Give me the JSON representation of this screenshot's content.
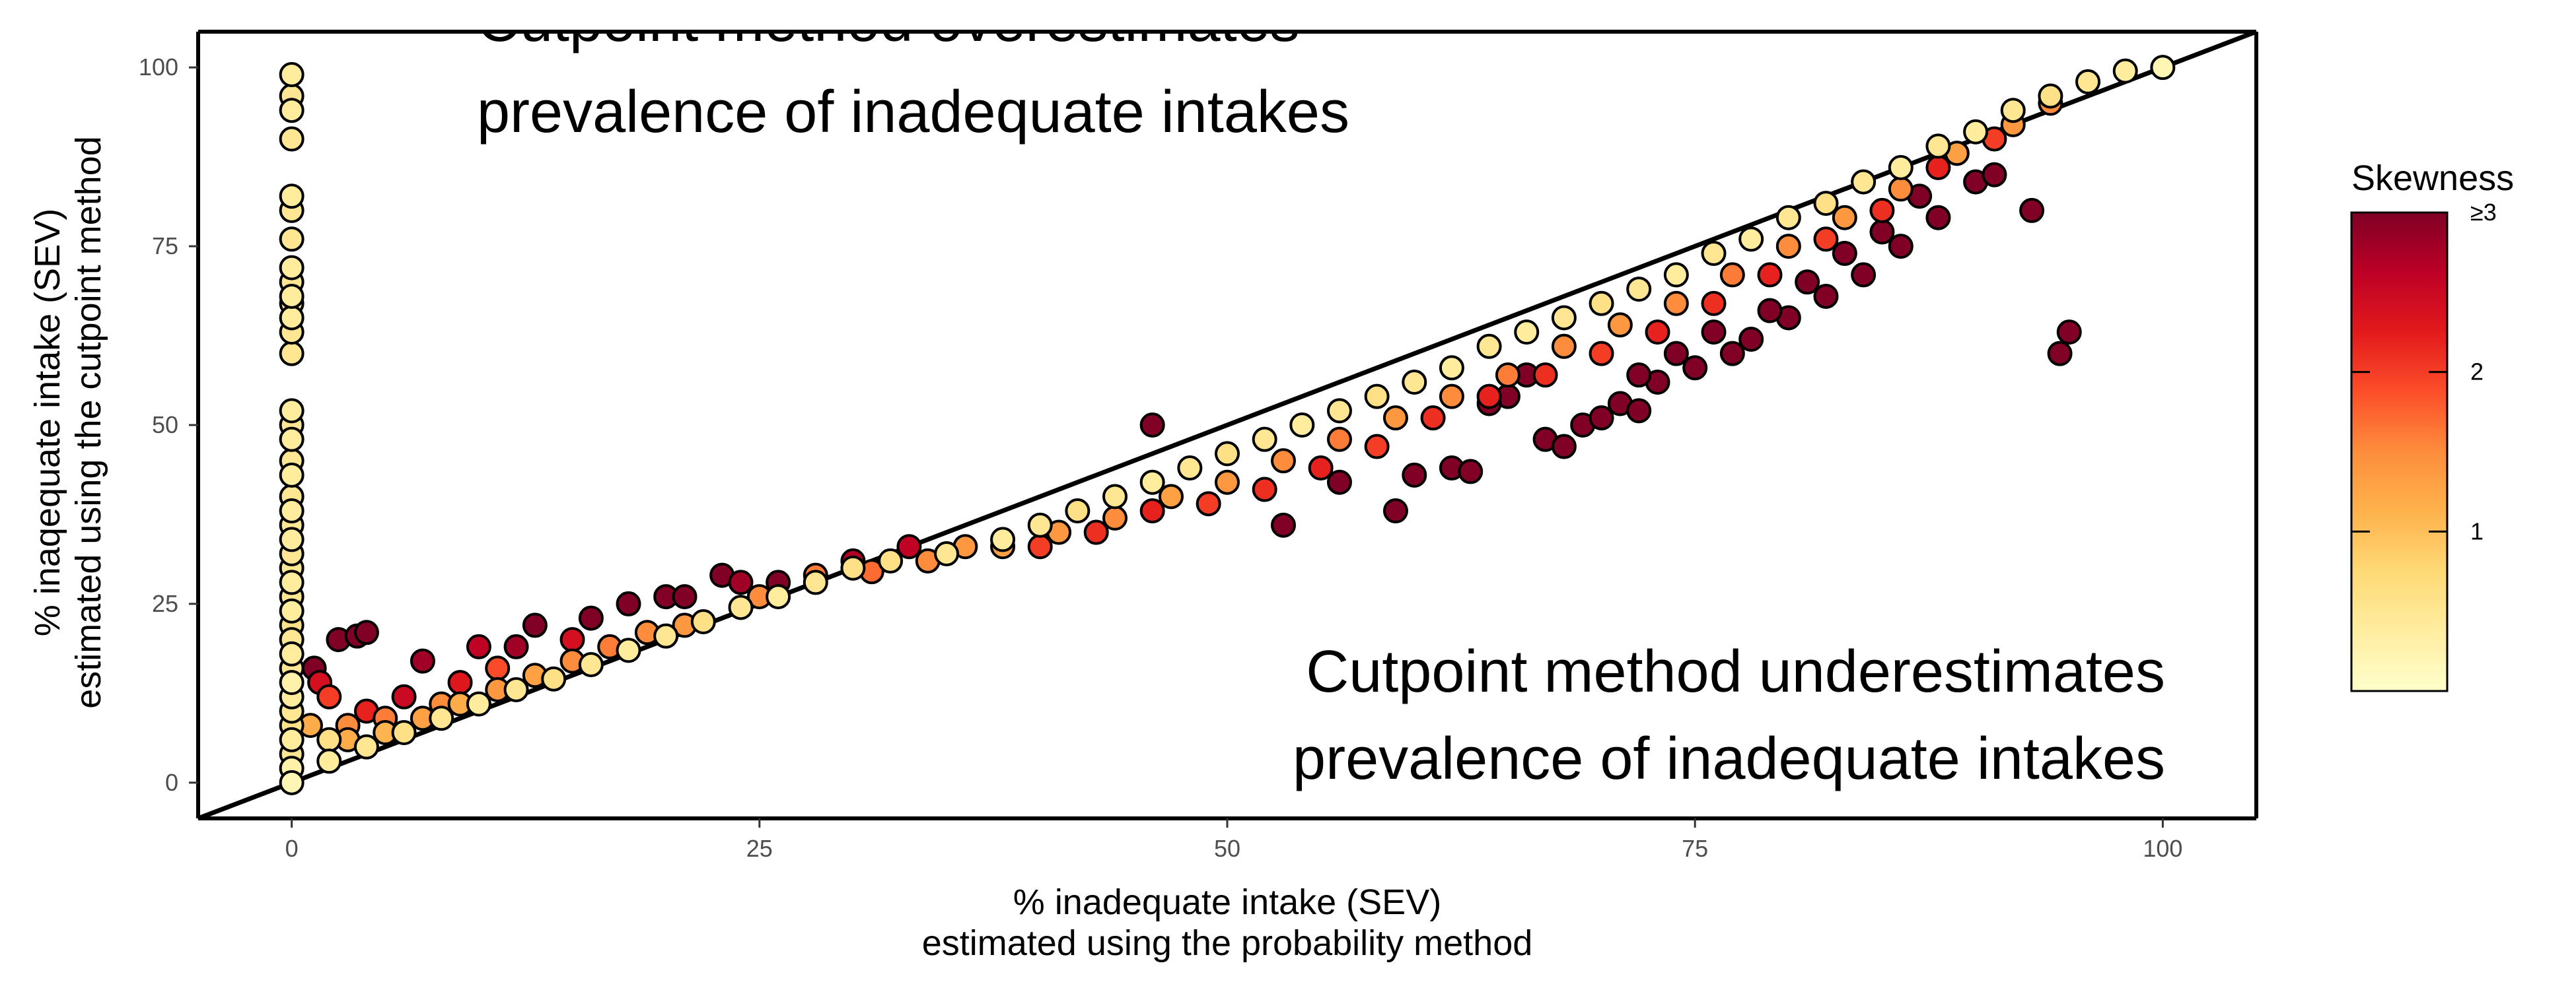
{
  "chart_data": {
    "type": "scatter",
    "xlabel_line1": "% inadequate intake (SEV)",
    "xlabel_line2": "estimated using the probability method",
    "ylabel_line1": "% inaqequate intake (SEV)",
    "ylabel_line2": "estimated using the cutpoint method",
    "xlim": [
      -5,
      105
    ],
    "ylim": [
      -5,
      105
    ],
    "x_ticks": [
      0,
      25,
      50,
      75,
      100
    ],
    "y_ticks": [
      0,
      25,
      50,
      75,
      100
    ],
    "x_tick_labels": [
      "0",
      "25",
      "50",
      "75",
      "100"
    ],
    "y_tick_labels": [
      "0",
      "25",
      "50",
      "75",
      "100"
    ],
    "grid": false,
    "reference_line": {
      "slope": 1,
      "intercept": 0
    },
    "annotations": {
      "over_line1": "Cutpoint method overestimates",
      "over_line2": "prevalence of inadequate intakes",
      "under_line1": "Cutpoint method underestimates",
      "under_line2": "prevalence of inadequate intakes"
    },
    "color_scale": {
      "title": "Skewness",
      "min": 0,
      "max": 3,
      "tick_values": [
        1,
        2,
        3
      ],
      "tick_labels": [
        "1",
        "2",
        "≥3"
      ],
      "colors": [
        "#ffffcc",
        "#ffeda0",
        "#fed976",
        "#feb24c",
        "#fd8d3c",
        "#fc4e2a",
        "#e31a1c",
        "#bd0026",
        "#800026"
      ],
      "legend_position": "right"
    },
    "points": [
      {
        "x": 0,
        "y": 0,
        "s": 0.2
      },
      {
        "x": 0,
        "y": 2,
        "s": 0.3
      },
      {
        "x": 0,
        "y": 4,
        "s": 0.5
      },
      {
        "x": 0,
        "y": 6,
        "s": 0.4
      },
      {
        "x": 0,
        "y": 8,
        "s": 0.6
      },
      {
        "x": 0,
        "y": 10,
        "s": 0.5
      },
      {
        "x": 0,
        "y": 12,
        "s": 0.4
      },
      {
        "x": 0,
        "y": 14,
        "s": 0.3
      },
      {
        "x": 0,
        "y": 16,
        "s": 0.5
      },
      {
        "x": 0,
        "y": 18,
        "s": 0.4
      },
      {
        "x": 0,
        "y": 20,
        "s": 0.5
      },
      {
        "x": 0,
        "y": 22,
        "s": 0.6
      },
      {
        "x": 0,
        "y": 24,
        "s": 0.4
      },
      {
        "x": 0,
        "y": 26,
        "s": 0.5
      },
      {
        "x": 0,
        "y": 28,
        "s": 0.4
      },
      {
        "x": 0,
        "y": 30,
        "s": 0.5
      },
      {
        "x": 0,
        "y": 32,
        "s": 0.5
      },
      {
        "x": 0,
        "y": 34,
        "s": 0.4
      },
      {
        "x": 0,
        "y": 36,
        "s": 0.5
      },
      {
        "x": 0,
        "y": 38,
        "s": 0.4
      },
      {
        "x": 0,
        "y": 40,
        "s": 0.5
      },
      {
        "x": 0,
        "y": 43,
        "s": 0.4
      },
      {
        "x": 0,
        "y": 45,
        "s": 0.5
      },
      {
        "x": 0,
        "y": 48,
        "s": 0.4
      },
      {
        "x": 0,
        "y": 50,
        "s": 0.5
      },
      {
        "x": 0,
        "y": 52,
        "s": 0.4
      },
      {
        "x": 0,
        "y": 60,
        "s": 0.5
      },
      {
        "x": 0,
        "y": 63,
        "s": 0.5
      },
      {
        "x": 0,
        "y": 65,
        "s": 0.4
      },
      {
        "x": 0,
        "y": 67,
        "s": 0.5
      },
      {
        "x": 0,
        "y": 68,
        "s": 0.4
      },
      {
        "x": 0,
        "y": 70,
        "s": 0.5
      },
      {
        "x": 0,
        "y": 72,
        "s": 0.4
      },
      {
        "x": 0,
        "y": 76,
        "s": 0.5
      },
      {
        "x": 0,
        "y": 80,
        "s": 0.5
      },
      {
        "x": 0,
        "y": 82,
        "s": 0.4
      },
      {
        "x": 0,
        "y": 90,
        "s": 0.5
      },
      {
        "x": 0,
        "y": 94,
        "s": 0.4
      },
      {
        "x": 0,
        "y": 96,
        "s": 0.5
      },
      {
        "x": 0,
        "y": 99,
        "s": 0.4
      },
      {
        "x": 2.5,
        "y": 20,
        "s": 3
      },
      {
        "x": 3.5,
        "y": 20.5,
        "s": 3
      },
      {
        "x": 4,
        "y": 21,
        "s": 3
      },
      {
        "x": 1.2,
        "y": 16,
        "s": 3
      },
      {
        "x": 1.5,
        "y": 14,
        "s": 2.4
      },
      {
        "x": 2,
        "y": 12,
        "s": 2
      },
      {
        "x": 1,
        "y": 8,
        "s": 1.2
      },
      {
        "x": 2,
        "y": 6,
        "s": 0.6
      },
      {
        "x": 3,
        "y": 8,
        "s": 1.5
      },
      {
        "x": 4,
        "y": 10,
        "s": 2.2
      },
      {
        "x": 5,
        "y": 9,
        "s": 1.6
      },
      {
        "x": 6,
        "y": 12,
        "s": 2.5
      },
      {
        "x": 7,
        "y": 17,
        "s": 2.8
      },
      {
        "x": 8,
        "y": 11,
        "s": 1.5
      },
      {
        "x": 9,
        "y": 14,
        "s": 2.3
      },
      {
        "x": 10,
        "y": 19,
        "s": 2.6
      },
      {
        "x": 11,
        "y": 16,
        "s": 1.9
      },
      {
        "x": 12,
        "y": 19,
        "s": 2.8
      },
      {
        "x": 13,
        "y": 22,
        "s": 3
      },
      {
        "x": 15,
        "y": 20,
        "s": 2.4
      },
      {
        "x": 16,
        "y": 23,
        "s": 3
      },
      {
        "x": 18,
        "y": 25,
        "s": 3
      },
      {
        "x": 20,
        "y": 26,
        "s": 3
      },
      {
        "x": 21,
        "y": 26,
        "s": 3
      },
      {
        "x": 23,
        "y": 29,
        "s": 3
      },
      {
        "x": 24,
        "y": 28,
        "s": 2.8
      },
      {
        "x": 26,
        "y": 28,
        "s": 3
      },
      {
        "x": 30,
        "y": 31,
        "s": 2.7
      },
      {
        "x": 33,
        "y": 33,
        "s": 2.6
      },
      {
        "x": 2,
        "y": 3,
        "s": 0.4
      },
      {
        "x": 4,
        "y": 5,
        "s": 0.5
      },
      {
        "x": 6,
        "y": 7,
        "s": 0.6
      },
      {
        "x": 8,
        "y": 9,
        "s": 0.5
      },
      {
        "x": 10,
        "y": 11,
        "s": 0.4
      },
      {
        "x": 12,
        "y": 13,
        "s": 0.5
      },
      {
        "x": 14,
        "y": 14.5,
        "s": 0.6
      },
      {
        "x": 16,
        "y": 16.5,
        "s": 0.5
      },
      {
        "x": 18,
        "y": 18.5,
        "s": 0.4
      },
      {
        "x": 20,
        "y": 20.5,
        "s": 0.5
      },
      {
        "x": 22,
        "y": 22.5,
        "s": 0.6
      },
      {
        "x": 24,
        "y": 24.5,
        "s": 0.5
      },
      {
        "x": 26,
        "y": 26,
        "s": 0.4
      },
      {
        "x": 28,
        "y": 28,
        "s": 0.5
      },
      {
        "x": 30,
        "y": 30,
        "s": 0.6
      },
      {
        "x": 3,
        "y": 6,
        "s": 1.2
      },
      {
        "x": 5,
        "y": 7,
        "s": 1.1
      },
      {
        "x": 7,
        "y": 9,
        "s": 1.3
      },
      {
        "x": 9,
        "y": 11,
        "s": 1.2
      },
      {
        "x": 11,
        "y": 13,
        "s": 1.4
      },
      {
        "x": 13,
        "y": 15,
        "s": 1.3
      },
      {
        "x": 15,
        "y": 17,
        "s": 1.5
      },
      {
        "x": 17,
        "y": 19,
        "s": 1.6
      },
      {
        "x": 19,
        "y": 21,
        "s": 1.5
      },
      {
        "x": 21,
        "y": 22,
        "s": 1.4
      },
      {
        "x": 25,
        "y": 26,
        "s": 1.5
      },
      {
        "x": 28,
        "y": 29,
        "s": 1.6
      },
      {
        "x": 31,
        "y": 29.5,
        "s": 1.7
      },
      {
        "x": 34,
        "y": 31,
        "s": 1.5
      },
      {
        "x": 36,
        "y": 33,
        "s": 1.4
      },
      {
        "x": 32,
        "y": 31,
        "s": 0.6
      },
      {
        "x": 35,
        "y": 32,
        "s": 0.5
      },
      {
        "x": 38,
        "y": 34,
        "s": 0.4
      },
      {
        "x": 40,
        "y": 36,
        "s": 0.5
      },
      {
        "x": 42,
        "y": 38,
        "s": 0.6
      },
      {
        "x": 44,
        "y": 40,
        "s": 0.5
      },
      {
        "x": 46,
        "y": 42,
        "s": 0.4
      },
      {
        "x": 48,
        "y": 44,
        "s": 0.5
      },
      {
        "x": 50,
        "y": 46,
        "s": 0.6
      },
      {
        "x": 52,
        "y": 48,
        "s": 0.5
      },
      {
        "x": 54,
        "y": 50,
        "s": 0.4
      },
      {
        "x": 56,
        "y": 52,
        "s": 0.5
      },
      {
        "x": 58,
        "y": 54,
        "s": 0.6
      },
      {
        "x": 60,
        "y": 56,
        "s": 0.5
      },
      {
        "x": 62,
        "y": 58,
        "s": 0.4
      },
      {
        "x": 64,
        "y": 61,
        "s": 0.5
      },
      {
        "x": 66,
        "y": 63,
        "s": 0.4
      },
      {
        "x": 68,
        "y": 65,
        "s": 0.5
      },
      {
        "x": 70,
        "y": 67,
        "s": 0.6
      },
      {
        "x": 72,
        "y": 69,
        "s": 0.5
      },
      {
        "x": 74,
        "y": 71,
        "s": 0.4
      },
      {
        "x": 76,
        "y": 74,
        "s": 0.5
      },
      {
        "x": 78,
        "y": 76,
        "s": 0.4
      },
      {
        "x": 80,
        "y": 79,
        "s": 0.5
      },
      {
        "x": 82,
        "y": 81,
        "s": 0.6
      },
      {
        "x": 84,
        "y": 84,
        "s": 0.5
      },
      {
        "x": 86,
        "y": 86,
        "s": 0.4
      },
      {
        "x": 88,
        "y": 89,
        "s": 0.5
      },
      {
        "x": 90,
        "y": 91,
        "s": 0.4
      },
      {
        "x": 92,
        "y": 94,
        "s": 0.5
      },
      {
        "x": 94,
        "y": 96,
        "s": 0.6
      },
      {
        "x": 96,
        "y": 98,
        "s": 0.5
      },
      {
        "x": 98,
        "y": 99.5,
        "s": 0.4
      },
      {
        "x": 100,
        "y": 100,
        "s": 0.2
      },
      {
        "x": 38,
        "y": 33,
        "s": 1.3
      },
      {
        "x": 41,
        "y": 35,
        "s": 1.4
      },
      {
        "x": 44,
        "y": 37,
        "s": 1.5
      },
      {
        "x": 47,
        "y": 40,
        "s": 1.3
      },
      {
        "x": 50,
        "y": 42,
        "s": 1.4
      },
      {
        "x": 53,
        "y": 45,
        "s": 1.5
      },
      {
        "x": 56,
        "y": 48,
        "s": 1.6
      },
      {
        "x": 59,
        "y": 51,
        "s": 1.4
      },
      {
        "x": 62,
        "y": 54,
        "s": 1.5
      },
      {
        "x": 65,
        "y": 57,
        "s": 1.6
      },
      {
        "x": 68,
        "y": 61,
        "s": 1.5
      },
      {
        "x": 71,
        "y": 64,
        "s": 1.4
      },
      {
        "x": 74,
        "y": 67,
        "s": 1.5
      },
      {
        "x": 77,
        "y": 71,
        "s": 1.6
      },
      {
        "x": 80,
        "y": 75,
        "s": 1.5
      },
      {
        "x": 83,
        "y": 79,
        "s": 1.4
      },
      {
        "x": 86,
        "y": 83,
        "s": 1.5
      },
      {
        "x": 89,
        "y": 88,
        "s": 1.3
      },
      {
        "x": 92,
        "y": 92,
        "s": 1.4
      },
      {
        "x": 94,
        "y": 95,
        "s": 1.5
      },
      {
        "x": 40,
        "y": 33,
        "s": 2
      },
      {
        "x": 43,
        "y": 35,
        "s": 2.1
      },
      {
        "x": 46,
        "y": 38,
        "s": 2.2
      },
      {
        "x": 49,
        "y": 39,
        "s": 2
      },
      {
        "x": 52,
        "y": 41,
        "s": 2.1
      },
      {
        "x": 55,
        "y": 44,
        "s": 2.2
      },
      {
        "x": 58,
        "y": 47,
        "s": 2
      },
      {
        "x": 61,
        "y": 51,
        "s": 2.1
      },
      {
        "x": 64,
        "y": 54,
        "s": 2.2
      },
      {
        "x": 67,
        "y": 57,
        "s": 2.1
      },
      {
        "x": 70,
        "y": 60,
        "s": 2
      },
      {
        "x": 73,
        "y": 63,
        "s": 2.2
      },
      {
        "x": 76,
        "y": 67,
        "s": 2.1
      },
      {
        "x": 79,
        "y": 71,
        "s": 2.2
      },
      {
        "x": 82,
        "y": 76,
        "s": 2
      },
      {
        "x": 85,
        "y": 80,
        "s": 2.1
      },
      {
        "x": 88,
        "y": 86,
        "s": 2.2
      },
      {
        "x": 91,
        "y": 90,
        "s": 2
      },
      {
        "x": 46,
        "y": 50,
        "s": 3
      },
      {
        "x": 53,
        "y": 36,
        "s": 3
      },
      {
        "x": 56,
        "y": 42,
        "s": 3
      },
      {
        "x": 59,
        "y": 38,
        "s": 3
      },
      {
        "x": 60,
        "y": 43,
        "s": 3
      },
      {
        "x": 62,
        "y": 44,
        "s": 3
      },
      {
        "x": 63,
        "y": 43.5,
        "s": 3
      },
      {
        "x": 67,
        "y": 48,
        "s": 3
      },
      {
        "x": 68,
        "y": 47,
        "s": 3
      },
      {
        "x": 69,
        "y": 50,
        "s": 3
      },
      {
        "x": 70,
        "y": 51,
        "s": 3
      },
      {
        "x": 71,
        "y": 53,
        "s": 3
      },
      {
        "x": 72,
        "y": 52,
        "s": 3
      },
      {
        "x": 73,
        "y": 56,
        "s": 3
      },
      {
        "x": 75,
        "y": 58,
        "s": 3
      },
      {
        "x": 77,
        "y": 60,
        "s": 3
      },
      {
        "x": 78,
        "y": 62,
        "s": 3
      },
      {
        "x": 80,
        "y": 65,
        "s": 3
      },
      {
        "x": 82,
        "y": 68,
        "s": 3
      },
      {
        "x": 84,
        "y": 71,
        "s": 3
      },
      {
        "x": 86,
        "y": 75,
        "s": 3
      },
      {
        "x": 88,
        "y": 79,
        "s": 3
      },
      {
        "x": 90,
        "y": 84,
        "s": 3
      },
      {
        "x": 91,
        "y": 85,
        "s": 3
      },
      {
        "x": 93,
        "y": 80,
        "s": 3
      },
      {
        "x": 95,
        "y": 63,
        "s": 3
      },
      {
        "x": 94.5,
        "y": 60,
        "s": 3
      },
      {
        "x": 89,
        "y": 88,
        "s": 3
      },
      {
        "x": 87,
        "y": 82,
        "s": 3
      },
      {
        "x": 85,
        "y": 77,
        "s": 3
      },
      {
        "x": 83,
        "y": 74,
        "s": 3
      },
      {
        "x": 81,
        "y": 70,
        "s": 3
      },
      {
        "x": 79,
        "y": 66,
        "s": 3
      },
      {
        "x": 76,
        "y": 63,
        "s": 3
      },
      {
        "x": 74,
        "y": 60,
        "s": 3
      },
      {
        "x": 72,
        "y": 57,
        "s": 3
      },
      {
        "x": 65,
        "y": 54,
        "s": 3
      },
      {
        "x": 66,
        "y": 57,
        "s": 3
      },
      {
        "x": 64,
        "y": 53,
        "s": 3
      }
    ]
  }
}
